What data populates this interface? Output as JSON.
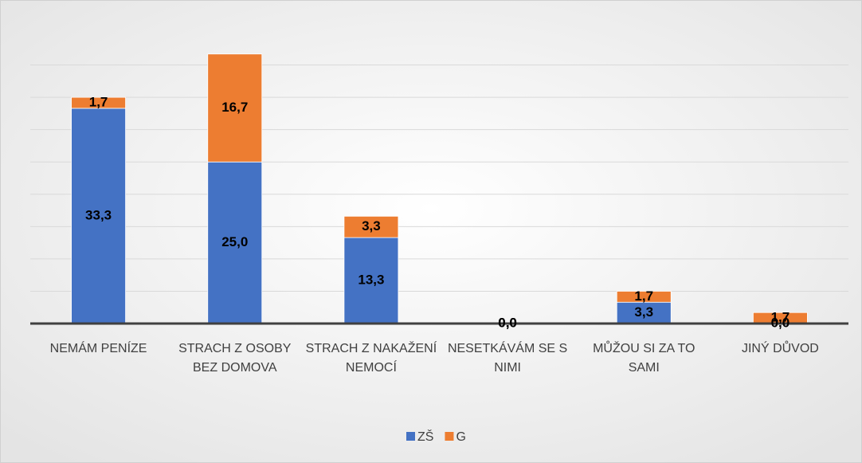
{
  "chart_data": {
    "type": "stacked_bar",
    "categories": [
      "NEMÁM PENÍZE",
      "STRACH Z OSOBY BEZ DOMOVA",
      "STRACH Z NAKAŽENÍ NEMOCÍ",
      "NESETKÁVÁM SE S NIMI",
      "MŮŽOU SI ZA TO SAMI",
      "JINÝ DŮVOD"
    ],
    "series": [
      {
        "name": "ZŠ",
        "color": "#4472c4",
        "values": [
          33.3,
          25.0,
          13.3,
          0.0,
          3.3,
          0.0
        ],
        "value_labels": [
          "33,3",
          "25,0",
          "13,3",
          "0,0",
          "3,3",
          "0,0"
        ]
      },
      {
        "name": "G",
        "color": "#ed7d31",
        "values": [
          1.7,
          16.7,
          3.3,
          0.0,
          1.7,
          1.7
        ],
        "value_labels": [
          "1,7",
          "16,7",
          "3,3",
          "0,0",
          "1,7",
          "1,7"
        ]
      }
    ],
    "ylim": [
      0,
      45
    ],
    "yticks": [
      0,
      5,
      10,
      15,
      20,
      25,
      30,
      35,
      40
    ],
    "grid": true,
    "legend": "bottom"
  }
}
